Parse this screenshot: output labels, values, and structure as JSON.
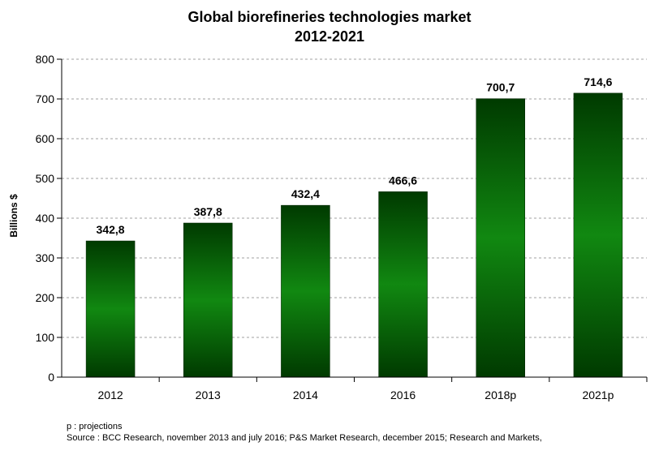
{
  "chart_data": {
    "type": "bar",
    "title": [
      "Global biorefineries technologies market",
      "2012-2021"
    ],
    "ylabel": "Billions $",
    "xlabel": "",
    "categories": [
      "2012",
      "2013",
      "2014",
      "2016",
      "2018p",
      "2021p"
    ],
    "values": [
      342.8,
      387.8,
      432.4,
      466.6,
      700.7,
      714.6
    ],
    "value_labels": [
      "342,8",
      "387,8",
      "432,4",
      "466,6",
      "700,7",
      "714,6"
    ],
    "yticks": [
      0,
      100,
      200,
      300,
      400,
      500,
      600,
      700,
      800
    ],
    "ylim": [
      0,
      800
    ],
    "grid": "horizontal dashed",
    "legend": "none",
    "colors": {
      "bar_dark": "#003300",
      "bar_mid": "#118811",
      "grid": "#a0a0a0"
    }
  },
  "notes": {
    "line1": "p : projections",
    "line2": "Source : BCC Research, november 2013 and july 2016; P&S Market Research, december 2015; Research and Markets,"
  }
}
